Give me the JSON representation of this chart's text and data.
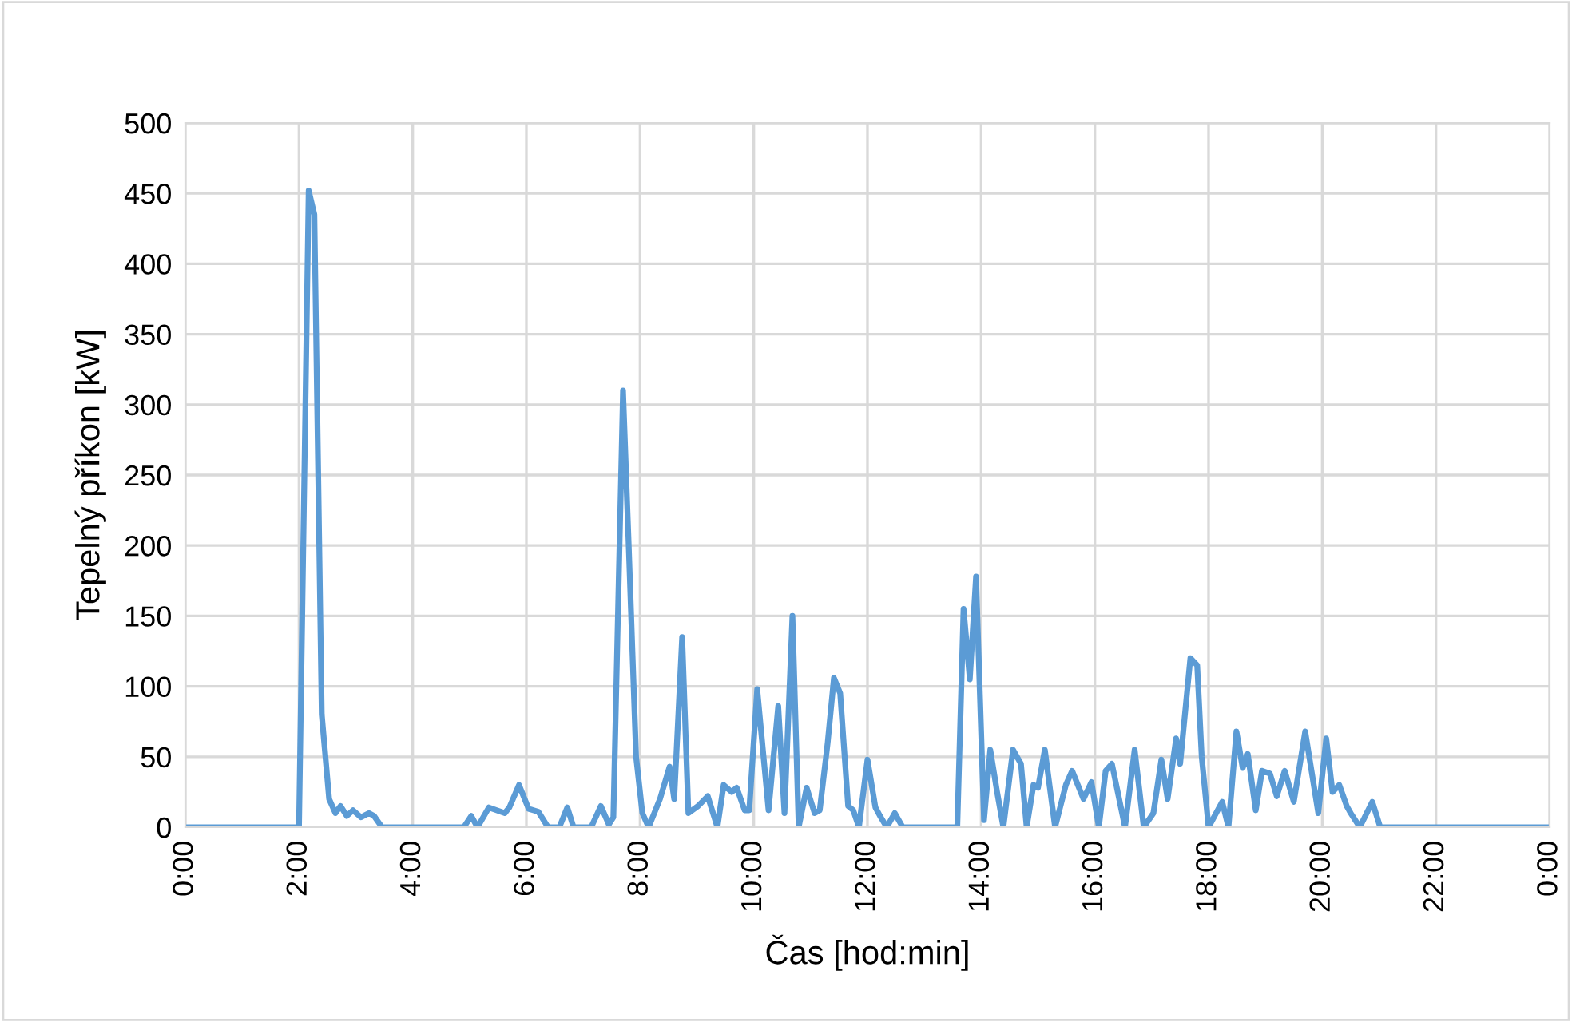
{
  "chart_data": {
    "type": "line",
    "xlabel": "Čas [hod:min]",
    "ylabel": "Tepelný příkon [kW]",
    "x": [
      0,
      2.0,
      2.17,
      2.27,
      2.4,
      2.53,
      2.64,
      2.73,
      2.84,
      2.95,
      3.09,
      3.23,
      3.32,
      3.46,
      4.9,
      5.03,
      5.14,
      5.34,
      5.62,
      5.7,
      5.87,
      6.04,
      6.21,
      6.38,
      6.58,
      6.72,
      6.83,
      7.14,
      7.31,
      7.45,
      7.53,
      7.7,
      7.8,
      7.93,
      8.04,
      8.15,
      8.35,
      8.52,
      8.6,
      8.74,
      8.85,
      9.02,
      9.19,
      9.36,
      9.47,
      9.61,
      9.7,
      9.84,
      9.92,
      10.06,
      10.26,
      10.43,
      10.54,
      10.68,
      10.79,
      10.93,
      11.07,
      11.16,
      11.3,
      11.41,
      11.52,
      11.66,
      11.75,
      11.85,
      12.0,
      12.14,
      12.22,
      12.34,
      12.48,
      12.62,
      13.58,
      13.69,
      13.8,
      13.91,
      14.05,
      14.16,
      14.28,
      14.39,
      14.56,
      14.7,
      14.8,
      14.92,
      15.0,
      15.12,
      15.3,
      15.49,
      15.6,
      15.8,
      15.94,
      16.07,
      16.19,
      16.3,
      16.53,
      16.7,
      16.86,
      17.03,
      17.17,
      17.28,
      17.43,
      17.5,
      17.68,
      17.8,
      17.88,
      18.0,
      18.24,
      18.35,
      18.49,
      18.6,
      18.69,
      18.83,
      18.94,
      19.08,
      19.2,
      19.34,
      19.5,
      19.7,
      19.93,
      20.07,
      20.18,
      20.3,
      20.43,
      20.5,
      20.66,
      20.88,
      21.02,
      24
    ],
    "series": [
      {
        "color": "#5b9bd5",
        "values": [
          0,
          0,
          452,
          435,
          80,
          20,
          10,
          15,
          8,
          12,
          7,
          10,
          8,
          0,
          0,
          8,
          0,
          14,
          10,
          14,
          30,
          13,
          11,
          0,
          0,
          14,
          0,
          0,
          15,
          2,
          7,
          310,
          200,
          50,
          10,
          0,
          20,
          43,
          20,
          135,
          10,
          15,
          22,
          0,
          30,
          25,
          28,
          12,
          12,
          98,
          12,
          86,
          10,
          150,
          0,
          28,
          10,
          12,
          60,
          106,
          95,
          15,
          12,
          0,
          48,
          14,
          8,
          0,
          10,
          0,
          0,
          155,
          105,
          178,
          5,
          55,
          25,
          0,
          55,
          45,
          0,
          30,
          28,
          55,
          0,
          30,
          40,
          20,
          32,
          0,
          40,
          45,
          0,
          55,
          0,
          10,
          48,
          20,
          63,
          45,
          120,
          115,
          50,
          0,
          18,
          0,
          68,
          42,
          52,
          12,
          40,
          38,
          22,
          40,
          18,
          68,
          10,
          63,
          25,
          30,
          15,
          10,
          0,
          18,
          0,
          0
        ]
      }
    ],
    "xlim": [
      0,
      24
    ],
    "xticks": [
      {
        "value": 0,
        "label": "0:00"
      },
      {
        "value": 2,
        "label": "2:00"
      },
      {
        "value": 4,
        "label": "4:00"
      },
      {
        "value": 6,
        "label": "6:00"
      },
      {
        "value": 8,
        "label": "8:00"
      },
      {
        "value": 10,
        "label": "10:00"
      },
      {
        "value": 12,
        "label": "12:00"
      },
      {
        "value": 14,
        "label": "14:00"
      },
      {
        "value": 16,
        "label": "16:00"
      },
      {
        "value": 18,
        "label": "18:00"
      },
      {
        "value": 20,
        "label": "20:00"
      },
      {
        "value": 22,
        "label": "22:00"
      },
      {
        "value": 24,
        "label": "0:00"
      }
    ],
    "ylim": [
      0,
      500
    ],
    "yticks": [
      0,
      50,
      100,
      150,
      200,
      250,
      300,
      350,
      400,
      450,
      500
    ],
    "grid": true,
    "marker": "none",
    "line_style": "solid",
    "legend": false
  }
}
